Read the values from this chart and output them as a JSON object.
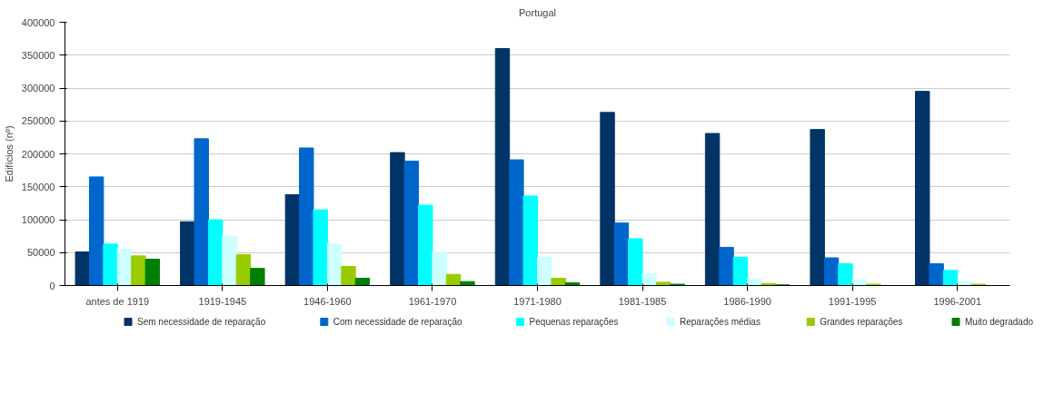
{
  "chart_data": {
    "type": "bar",
    "title": "Portugal",
    "ylabel": "Edifícios (nº)",
    "categories": [
      "antes de 1919",
      "1919-1945",
      "1946-1960",
      "1961-1970",
      "1971-1980",
      "1981-1985",
      "1986-1990",
      "1991-1995",
      "1996-2001"
    ],
    "series": [
      {
        "name": "Sem necessidade de reparação",
        "color": "#003366",
        "values": [
          51000,
          97000,
          138000,
          202000,
          360000,
          263000,
          231000,
          237000,
          295000
        ]
      },
      {
        "name": "Com necessidade de reparação",
        "color": "#0066cc",
        "values": [
          165000,
          223000,
          209000,
          189000,
          191000,
          95000,
          58000,
          42000,
          33000
        ]
      },
      {
        "name": "Pequenas reparações",
        "color": "#00ffff",
        "values": [
          63000,
          100000,
          115000,
          122000,
          136000,
          71000,
          43000,
          33000,
          23000
        ]
      },
      {
        "name": "Reparações médias",
        "color": "#ccffff",
        "values": [
          55000,
          75000,
          63000,
          50000,
          43000,
          18000,
          10000,
          9000,
          6000
        ]
      },
      {
        "name": "Grandes reparações",
        "color": "#99cc00",
        "values": [
          45000,
          47000,
          29000,
          17000,
          11000,
          5000,
          3000,
          2000,
          2000
        ]
      },
      {
        "name": "Muito degradado",
        "color": "#008000",
        "values": [
          40000,
          26000,
          11000,
          6000,
          4000,
          2000,
          1000,
          0,
          0
        ]
      }
    ],
    "ylim": [
      0,
      400000
    ],
    "yticks": [
      0,
      50000,
      100000,
      150000,
      200000,
      250000,
      300000,
      350000,
      400000
    ],
    "grid": "y",
    "legend": "bottom"
  }
}
